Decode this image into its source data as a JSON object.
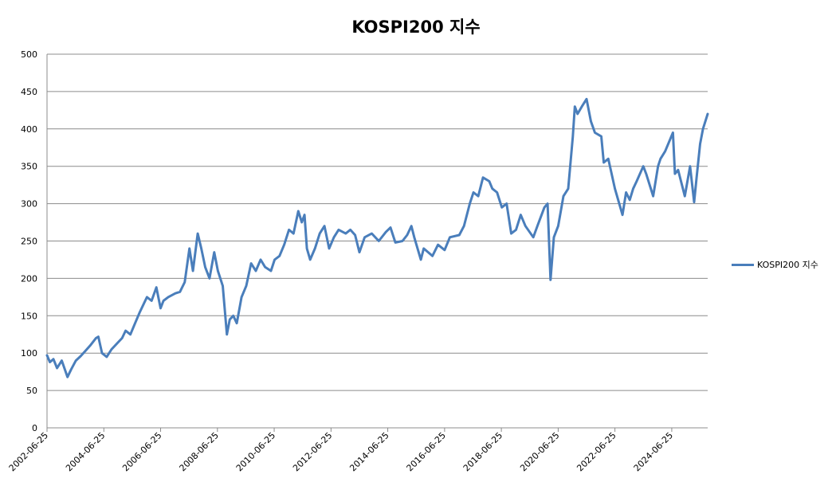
{
  "chart_data": {
    "type": "line",
    "title": "KOSPI200 지수",
    "xlabel": "",
    "ylabel": "",
    "ylim": [
      0,
      500
    ],
    "yticks": [
      0,
      50,
      100,
      150,
      200,
      250,
      300,
      350,
      400,
      450,
      500
    ],
    "xlim": [
      "2002-06-25",
      "2025-09-30"
    ],
    "xticks": [
      "2002-06-25",
      "2004-06-25",
      "2006-06-25",
      "2008-06-25",
      "2010-06-25",
      "2012-06-25",
      "2014-06-25",
      "2016-06-25",
      "2018-06-25",
      "2020-06-25",
      "2022-06-25",
      "2024-06-25"
    ],
    "grid": "horizontal",
    "legend_position": "right",
    "color": "#4a7ebb",
    "series": [
      {
        "name": "KOSPI200 지수",
        "points": [
          [
            "2002-06-25",
            97
          ],
          [
            "2002-08-01",
            88
          ],
          [
            "2002-09-15",
            92
          ],
          [
            "2002-11-01",
            80
          ],
          [
            "2003-01-01",
            90
          ],
          [
            "2003-03-15",
            68
          ],
          [
            "2003-05-01",
            78
          ],
          [
            "2003-07-01",
            90
          ],
          [
            "2003-09-01",
            96
          ],
          [
            "2003-11-01",
            103
          ],
          [
            "2004-01-01",
            110
          ],
          [
            "2004-03-15",
            120
          ],
          [
            "2004-04-15",
            122
          ],
          [
            "2004-06-01",
            100
          ],
          [
            "2004-08-01",
            95
          ],
          [
            "2004-10-01",
            105
          ],
          [
            "2004-12-31",
            115
          ],
          [
            "2005-02-15",
            120
          ],
          [
            "2005-04-01",
            130
          ],
          [
            "2005-06-01",
            125
          ],
          [
            "2005-08-01",
            140
          ],
          [
            "2005-10-01",
            155
          ],
          [
            "2005-12-31",
            175
          ],
          [
            "2006-03-01",
            170
          ],
          [
            "2006-05-01",
            188
          ],
          [
            "2006-06-25",
            160
          ],
          [
            "2006-08-01",
            170
          ],
          [
            "2006-10-01",
            175
          ],
          [
            "2006-12-31",
            180
          ],
          [
            "2007-03-01",
            182
          ],
          [
            "2007-05-01",
            195
          ],
          [
            "2007-07-01",
            240
          ],
          [
            "2007-08-15",
            210
          ],
          [
            "2007-10-15",
            260
          ],
          [
            "2007-12-01",
            240
          ],
          [
            "2008-01-20",
            215
          ],
          [
            "2008-03-15",
            200
          ],
          [
            "2008-05-15",
            235
          ],
          [
            "2008-07-01",
            210
          ],
          [
            "2008-09-01",
            190
          ],
          [
            "2008-10-25",
            125
          ],
          [
            "2008-12-01",
            145
          ],
          [
            "2009-01-15",
            150
          ],
          [
            "2009-03-01",
            140
          ],
          [
            "2009-05-01",
            175
          ],
          [
            "2009-07-01",
            190
          ],
          [
            "2009-09-01",
            220
          ],
          [
            "2009-11-01",
            210
          ],
          [
            "2010-01-01",
            225
          ],
          [
            "2010-03-01",
            215
          ],
          [
            "2010-05-15",
            210
          ],
          [
            "2010-07-01",
            225
          ],
          [
            "2010-09-01",
            230
          ],
          [
            "2010-11-01",
            245
          ],
          [
            "2011-01-01",
            265
          ],
          [
            "2011-03-01",
            260
          ],
          [
            "2011-05-01",
            290
          ],
          [
            "2011-06-15",
            275
          ],
          [
            "2011-07-20",
            285
          ],
          [
            "2011-08-20",
            240
          ],
          [
            "2011-10-01",
            225
          ],
          [
            "2011-12-01",
            240
          ],
          [
            "2012-02-01",
            260
          ],
          [
            "2012-04-01",
            270
          ],
          [
            "2012-06-01",
            240
          ],
          [
            "2012-08-01",
            255
          ],
          [
            "2012-10-01",
            265
          ],
          [
            "2012-12-31",
            260
          ],
          [
            "2013-03-01",
            265
          ],
          [
            "2013-05-01",
            258
          ],
          [
            "2013-06-25",
            235
          ],
          [
            "2013-09-01",
            255
          ],
          [
            "2013-12-01",
            260
          ],
          [
            "2014-03-01",
            250
          ],
          [
            "2014-06-01",
            262
          ],
          [
            "2014-07-30",
            268
          ],
          [
            "2014-10-01",
            248
          ],
          [
            "2014-12-31",
            250
          ],
          [
            "2015-03-01",
            258
          ],
          [
            "2015-04-25",
            270
          ],
          [
            "2015-06-01",
            255
          ],
          [
            "2015-08-25",
            225
          ],
          [
            "2015-10-01",
            240
          ],
          [
            "2016-01-20",
            230
          ],
          [
            "2016-04-01",
            245
          ],
          [
            "2016-06-25",
            238
          ],
          [
            "2016-09-01",
            255
          ],
          [
            "2016-12-31",
            258
          ],
          [
            "2017-03-01",
            270
          ],
          [
            "2017-05-15",
            300
          ],
          [
            "2017-07-01",
            315
          ],
          [
            "2017-09-01",
            310
          ],
          [
            "2017-11-01",
            335
          ],
          [
            "2018-01-20",
            330
          ],
          [
            "2018-03-01",
            320
          ],
          [
            "2018-05-01",
            315
          ],
          [
            "2018-07-01",
            295
          ],
          [
            "2018-09-01",
            300
          ],
          [
            "2018-10-30",
            260
          ],
          [
            "2018-12-31",
            265
          ],
          [
            "2019-03-01",
            285
          ],
          [
            "2019-05-01",
            270
          ],
          [
            "2019-08-10",
            255
          ],
          [
            "2019-10-01",
            270
          ],
          [
            "2019-12-31",
            295
          ],
          [
            "2020-02-10",
            300
          ],
          [
            "2020-03-19",
            198
          ],
          [
            "2020-05-01",
            255
          ],
          [
            "2020-06-25",
            270
          ],
          [
            "2020-09-01",
            310
          ],
          [
            "2020-11-01",
            320
          ],
          [
            "2020-12-31",
            390
          ],
          [
            "2021-01-25",
            430
          ],
          [
            "2021-03-01",
            420
          ],
          [
            "2021-04-25",
            430
          ],
          [
            "2021-06-25",
            440
          ],
          [
            "2021-08-20",
            410
          ],
          [
            "2021-10-10",
            395
          ],
          [
            "2021-12-31",
            390
          ],
          [
            "2022-02-01",
            355
          ],
          [
            "2022-04-01",
            360
          ],
          [
            "2022-06-25",
            320
          ],
          [
            "2022-09-30",
            285
          ],
          [
            "2022-11-15",
            315
          ],
          [
            "2023-01-01",
            305
          ],
          [
            "2023-02-15",
            320
          ],
          [
            "2023-04-01",
            330
          ],
          [
            "2023-06-25",
            350
          ],
          [
            "2023-08-01",
            340
          ],
          [
            "2023-10-30",
            310
          ],
          [
            "2023-12-31",
            350
          ],
          [
            "2024-02-01",
            360
          ],
          [
            "2024-04-01",
            370
          ],
          [
            "2024-07-10",
            395
          ],
          [
            "2024-08-05",
            340
          ],
          [
            "2024-09-15",
            345
          ],
          [
            "2024-11-15",
            320
          ],
          [
            "2024-12-10",
            310
          ],
          [
            "2025-02-15",
            350
          ],
          [
            "2025-04-09",
            302
          ],
          [
            "2025-05-10",
            335
          ],
          [
            "2025-06-25",
            380
          ],
          [
            "2025-08-01",
            400
          ],
          [
            "2025-09-30",
            420
          ]
        ]
      }
    ]
  }
}
